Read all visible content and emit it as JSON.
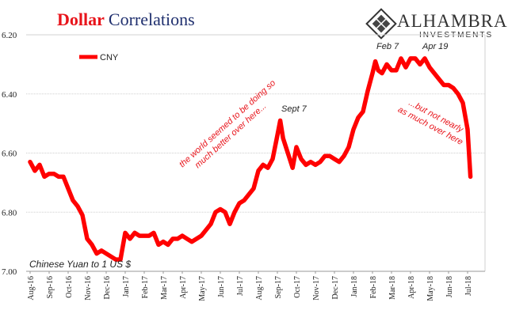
{
  "chart_data": {
    "type": "line",
    "title_part1": "Dollar",
    "title_part2": "Correlations",
    "brand": "ALHAMBRA",
    "brand_sub": "INVESTMENTS",
    "y_inverted": true,
    "ylim": [
      6.2,
      7.0
    ],
    "yticks": [
      "6.20",
      "6.40",
      "6.60",
      "6.80",
      "7.00"
    ],
    "x_categories": [
      "Aug-16",
      "Sep-16",
      "Oct-16",
      "Nov-16",
      "Dec-16",
      "Jan-17",
      "Feb-17",
      "Mar-17",
      "Apr-17",
      "May-17",
      "Jun-17",
      "Jul-17",
      "Aug-17",
      "Sep-17",
      "Oct-17",
      "Nov-17",
      "Dec-17",
      "Jan-18",
      "Feb-18",
      "Mar-18",
      "Apr-18",
      "May-18",
      "Jun-18",
      "Jul-18"
    ],
    "series": [
      {
        "name": "CNY",
        "color": "#ff0000",
        "x": [
          0,
          0.25,
          0.5,
          0.75,
          1,
          1.25,
          1.5,
          1.75,
          2,
          2.25,
          2.5,
          2.75,
          3,
          3.25,
          3.5,
          3.75,
          4,
          4.25,
          4.5,
          4.75,
          5,
          5.25,
          5.5,
          5.75,
          6,
          6.25,
          6.5,
          6.75,
          7,
          7.25,
          7.5,
          7.75,
          8,
          8.25,
          8.5,
          8.75,
          9,
          9.25,
          9.5,
          9.75,
          10,
          10.25,
          10.5,
          10.75,
          11,
          11.25,
          11.5,
          11.75,
          12,
          12.25,
          12.5,
          12.75,
          13,
          13.15,
          13.3,
          13.45,
          13.6,
          13.8,
          14,
          14.25,
          14.5,
          14.75,
          15,
          15.25,
          15.5,
          15.75,
          16,
          16.25,
          16.5,
          16.75,
          17,
          17.25,
          17.5,
          17.75,
          18,
          18.15,
          18.3,
          18.5,
          18.75,
          19,
          19.25,
          19.5,
          19.75,
          20,
          20.25,
          20.5,
          20.75,
          21,
          21.25,
          21.5,
          21.75,
          22,
          22.25,
          22.5,
          22.75,
          23,
          23.15
        ],
        "values": [
          6.63,
          6.66,
          6.64,
          6.68,
          6.67,
          6.67,
          6.68,
          6.68,
          6.72,
          6.76,
          6.78,
          6.81,
          6.89,
          6.91,
          6.94,
          6.93,
          6.94,
          6.95,
          6.96,
          6.96,
          6.87,
          6.89,
          6.87,
          6.88,
          6.88,
          6.88,
          6.87,
          6.91,
          6.9,
          6.91,
          6.89,
          6.89,
          6.88,
          6.89,
          6.9,
          6.89,
          6.88,
          6.86,
          6.84,
          6.8,
          6.79,
          6.8,
          6.84,
          6.8,
          6.77,
          6.76,
          6.74,
          6.72,
          6.66,
          6.64,
          6.65,
          6.62,
          6.54,
          6.49,
          6.55,
          6.58,
          6.61,
          6.65,
          6.58,
          6.62,
          6.64,
          6.63,
          6.64,
          6.63,
          6.61,
          6.61,
          6.62,
          6.63,
          6.61,
          6.58,
          6.52,
          6.48,
          6.46,
          6.39,
          6.33,
          6.29,
          6.32,
          6.33,
          6.3,
          6.32,
          6.32,
          6.28,
          6.31,
          6.28,
          6.28,
          6.3,
          6.28,
          6.31,
          6.33,
          6.35,
          6.37,
          6.37,
          6.38,
          6.4,
          6.43,
          6.52,
          6.68
        ]
      }
    ],
    "legend": "CNY",
    "note": "Chinese Yuan to 1 US $",
    "annotations": {
      "sept7": "Sept 7",
      "feb7": "Feb 7",
      "apr19": "Apr 19",
      "left_line1": "the world seemed to be doing so",
      "left_line2": "much better over here...",
      "right_line1": "...but not nearly",
      "right_line2": "as much over here"
    }
  }
}
